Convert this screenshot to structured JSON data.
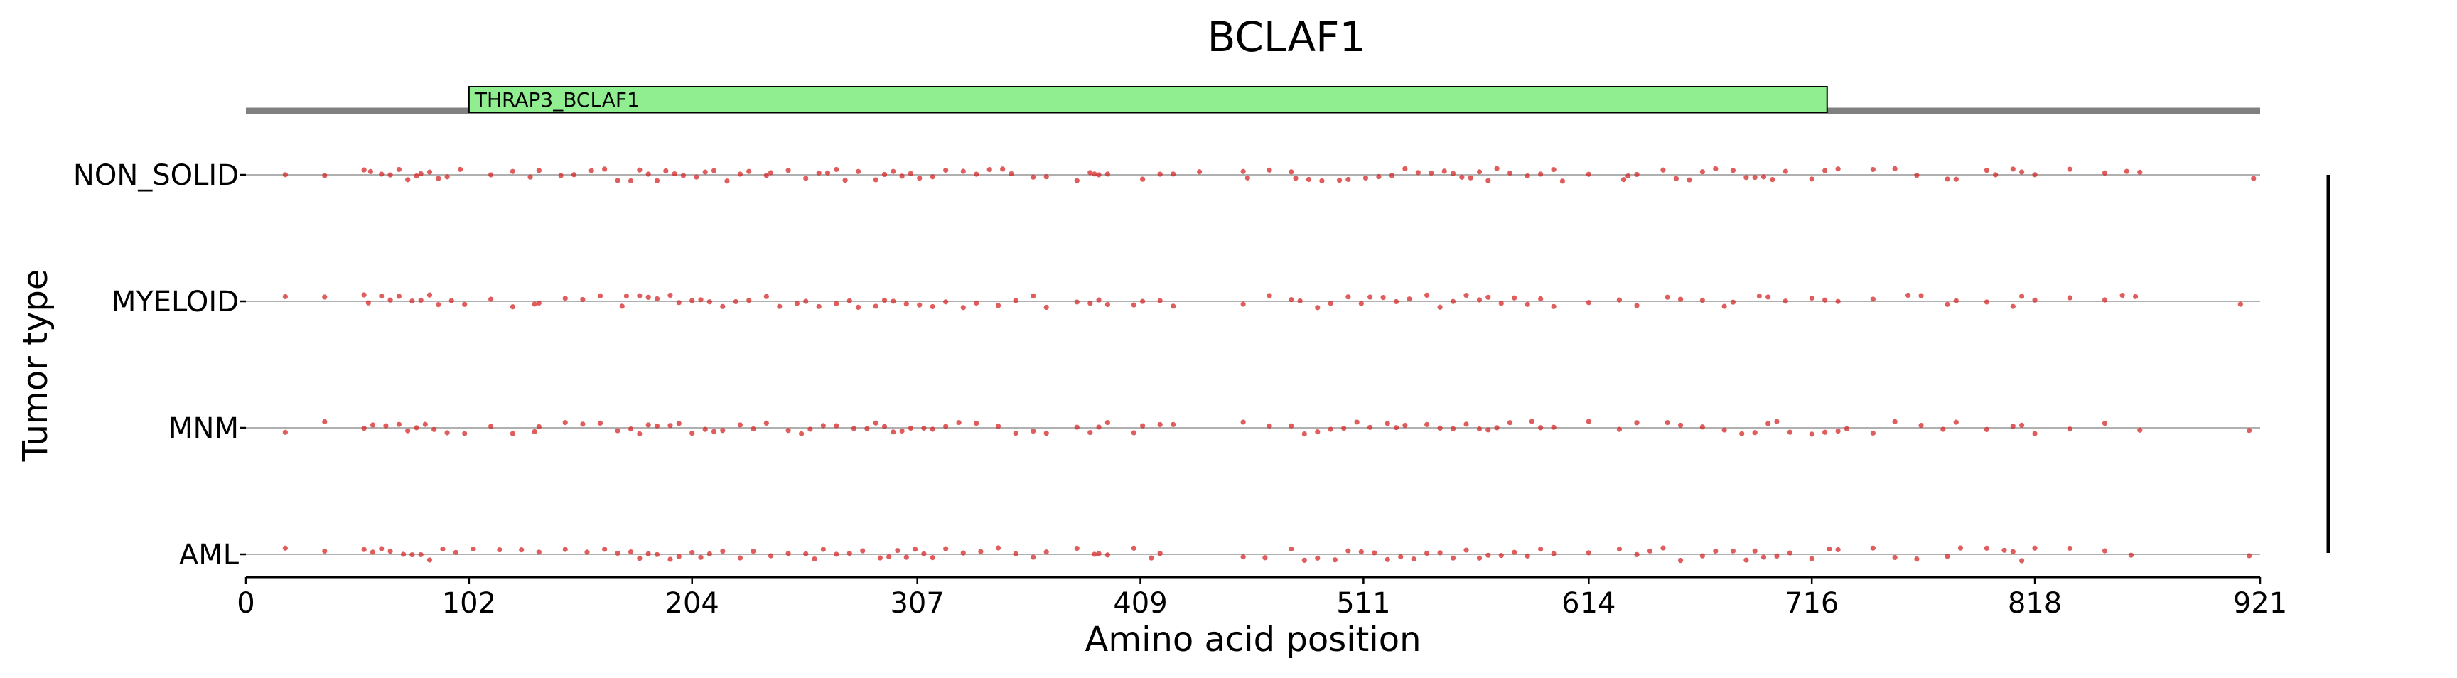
{
  "chart_data": {
    "type": "scatter",
    "title": "BCLAF1",
    "xlabel": "Amino acid position",
    "ylabel": "Tumor type",
    "xlim": [
      0,
      921
    ],
    "x_ticks": [
      "0",
      "102",
      "204",
      "307",
      "409",
      "511",
      "614",
      "716",
      "818",
      "921"
    ],
    "x_tick_values": [
      0,
      102,
      204,
      307,
      409,
      511,
      614,
      716,
      818,
      921
    ],
    "categories": [
      "NON_SOLID",
      "MYELOID",
      "MNM",
      "AML"
    ],
    "grid": false,
    "point_color": "#d62728",
    "protein_line_color": "#808080",
    "domains": [
      {
        "name": "THRAP3_BCLAF1",
        "start": 102,
        "end": 723,
        "color": "#90ee90"
      }
    ],
    "series": [
      {
        "category": "NON_SOLID",
        "x": [
          18,
          36,
          54,
          57,
          62,
          66,
          70,
          74,
          78,
          80,
          84,
          88,
          92,
          98,
          112,
          122,
          130,
          134,
          144,
          150,
          158,
          164,
          170,
          176,
          180,
          184,
          188,
          192,
          196,
          200,
          206,
          210,
          214,
          220,
          226,
          230,
          238,
          240,
          248,
          256,
          262,
          266,
          270,
          274,
          280,
          288,
          292,
          296,
          300,
          304,
          308,
          314,
          320,
          328,
          334,
          340,
          346,
          350,
          360,
          366,
          380,
          386,
          388,
          390,
          394,
          410,
          418,
          424,
          436,
          456,
          458,
          468,
          478,
          480,
          486,
          492,
          500,
          504,
          512,
          518,
          524,
          530,
          536,
          542,
          548,
          552,
          556,
          560,
          564,
          568,
          572,
          578,
          586,
          592,
          598,
          602,
          614,
          630,
          632,
          636,
          648,
          654,
          660,
          666,
          672,
          680,
          686,
          690,
          694,
          698,
          704,
          716,
          722,
          728,
          744,
          754,
          764,
          778,
          782,
          796,
          800,
          808,
          812,
          818,
          834,
          850,
          860,
          866,
          918
        ]
      },
      {
        "category": "MYELOID",
        "x": [
          18,
          36,
          54,
          56,
          62,
          66,
          70,
          76,
          80,
          84,
          88,
          94,
          100,
          112,
          122,
          132,
          134,
          146,
          154,
          162,
          172,
          174,
          180,
          184,
          188,
          194,
          198,
          204,
          208,
          212,
          218,
          224,
          230,
          238,
          244,
          252,
          256,
          262,
          270,
          276,
          280,
          288,
          292,
          296,
          302,
          308,
          314,
          320,
          328,
          334,
          344,
          352,
          360,
          366,
          380,
          386,
          390,
          394,
          406,
          410,
          418,
          424,
          456,
          468,
          478,
          482,
          490,
          496,
          504,
          510,
          514,
          520,
          526,
          532,
          540,
          546,
          552,
          558,
          564,
          568,
          574,
          580,
          586,
          592,
          598,
          614,
          628,
          636,
          650,
          656,
          666,
          676,
          680,
          692,
          696,
          704,
          716,
          722,
          728,
          744,
          760,
          766,
          778,
          782,
          796,
          808,
          812,
          818,
          834,
          850,
          858,
          864,
          912
        ]
      },
      {
        "category": "MNM",
        "x": [
          18,
          36,
          54,
          58,
          64,
          70,
          74,
          78,
          82,
          86,
          92,
          100,
          112,
          122,
          132,
          134,
          146,
          154,
          162,
          170,
          176,
          180,
          184,
          188,
          194,
          198,
          204,
          210,
          214,
          218,
          226,
          232,
          238,
          248,
          254,
          258,
          264,
          270,
          278,
          284,
          288,
          292,
          296,
          300,
          304,
          310,
          314,
          320,
          326,
          334,
          344,
          352,
          360,
          366,
          380,
          386,
          390,
          394,
          406,
          410,
          418,
          424,
          456,
          468,
          478,
          484,
          490,
          496,
          502,
          508,
          514,
          522,
          526,
          530,
          540,
          546,
          552,
          558,
          564,
          568,
          572,
          578,
          588,
          592,
          598,
          614,
          628,
          636,
          650,
          656,
          666,
          676,
          684,
          690,
          696,
          700,
          706,
          716,
          722,
          728,
          732,
          744,
          754,
          766,
          776,
          782,
          796,
          808,
          812,
          818,
          834,
          850,
          866,
          916
        ]
      },
      {
        "category": "AML",
        "x": [
          18,
          36,
          54,
          58,
          62,
          66,
          72,
          76,
          80,
          84,
          90,
          96,
          104,
          116,
          126,
          134,
          146,
          156,
          164,
          170,
          176,
          180,
          184,
          188,
          194,
          198,
          204,
          208,
          212,
          218,
          226,
          232,
          240,
          248,
          256,
          260,
          264,
          270,
          276,
          282,
          290,
          294,
          298,
          302,
          306,
          310,
          314,
          320,
          328,
          336,
          344,
          352,
          360,
          366,
          380,
          388,
          390,
          394,
          406,
          414,
          418,
          456,
          466,
          478,
          484,
          490,
          498,
          504,
          510,
          516,
          522,
          528,
          534,
          540,
          546,
          552,
          558,
          564,
          568,
          574,
          580,
          586,
          592,
          598,
          614,
          628,
          636,
          642,
          648,
          656,
          666,
          672,
          680,
          686,
          690,
          694,
          700,
          706,
          716,
          724,
          728,
          744,
          754,
          764,
          778,
          784,
          796,
          804,
          808,
          812,
          818,
          834,
          850,
          862,
          916
        ]
      }
    ]
  }
}
